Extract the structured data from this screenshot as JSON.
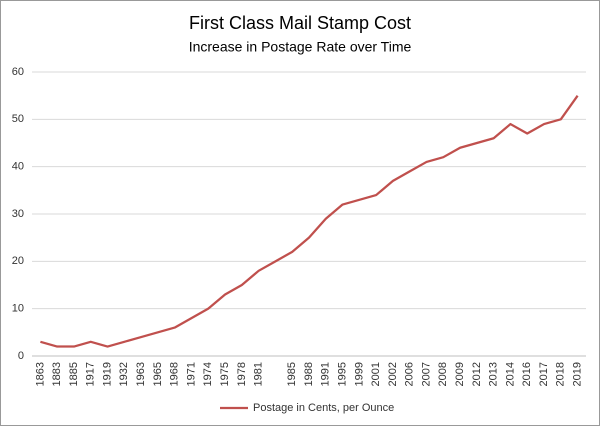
{
  "chart_data": {
    "type": "line",
    "title": "First Class Mail Stamp Cost",
    "subtitle": "Increase in Postage Rate over Time",
    "categories": [
      "1863",
      "1883",
      "1885",
      "1917",
      "1919",
      "1932",
      "1963",
      "1965",
      "1968",
      "1971",
      "1974",
      "1975",
      "1978",
      "1981",
      null,
      "1985",
      "1988",
      "1991",
      "1995",
      "1999",
      "2001",
      "2002",
      "2006",
      "2007",
      "2008",
      "2009",
      "2012",
      "2013",
      "2014",
      "2016",
      "2017",
      "2018",
      "2019"
    ],
    "series": [
      {
        "name": "Postage in Cents, per Ounce",
        "color": "#c0504d",
        "values": [
          3,
          2,
          2,
          3,
          2,
          3,
          4,
          5,
          6,
          8,
          10,
          13,
          15,
          18,
          20,
          22,
          25,
          29,
          32,
          33,
          34,
          37,
          39,
          41,
          42,
          44,
          45,
          46,
          49,
          47,
          49,
          50,
          55
        ]
      }
    ],
    "ylim": [
      0,
      60
    ],
    "yticks": [
      0,
      10,
      20,
      30,
      40,
      50,
      60
    ],
    "grid": true,
    "legend": "bottom"
  }
}
